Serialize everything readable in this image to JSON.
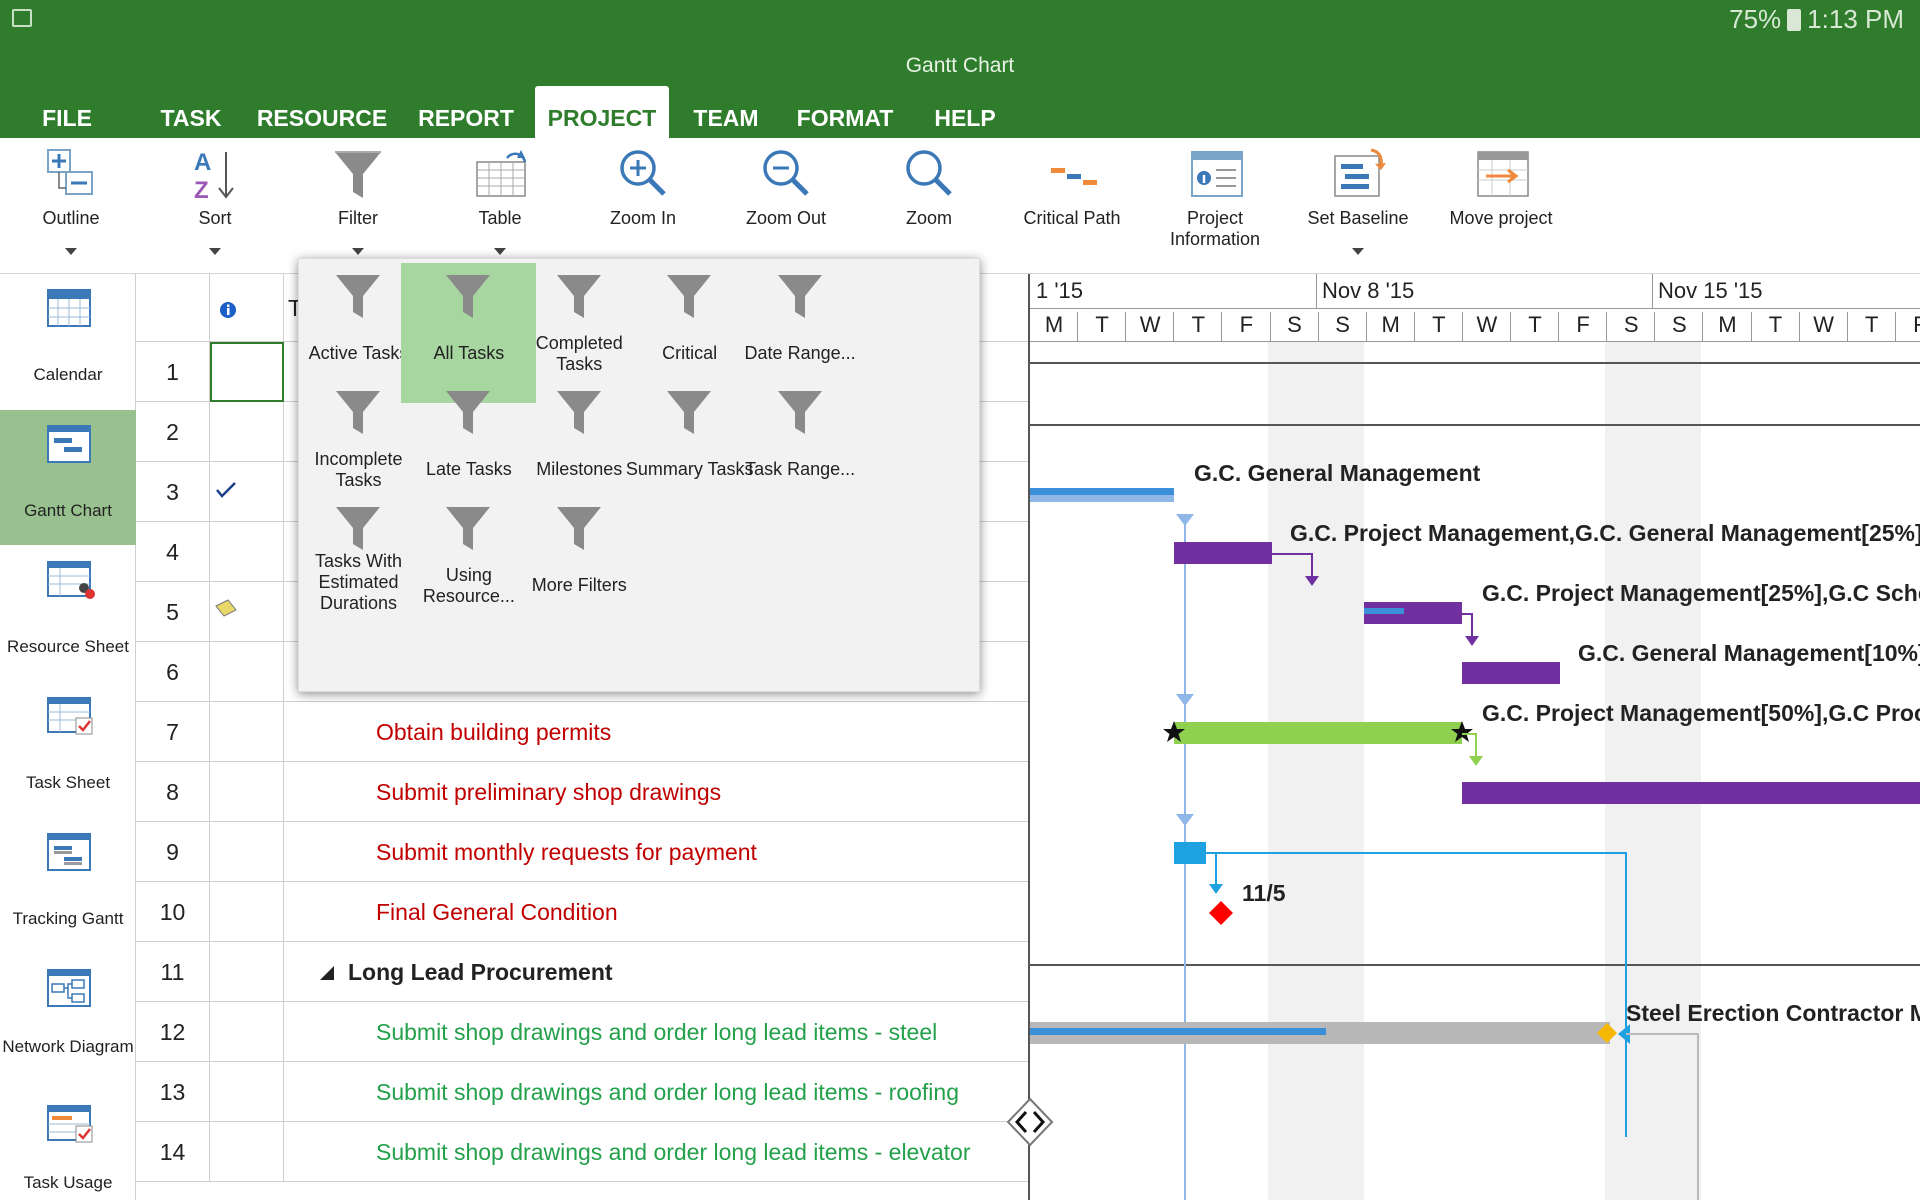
{
  "status_bar": {
    "battery": "75%",
    "time": "1:13 PM"
  },
  "app": {
    "title": "Gantt Chart"
  },
  "tabs": [
    "FILE",
    "TASK",
    "RESOURCE",
    "REPORT",
    "PROJECT",
    "TEAM",
    "FORMAT",
    "HELP"
  ],
  "active_tab": "PROJECT",
  "ribbon": {
    "outline": "Outline",
    "sort": "Sort",
    "filter": "Filter",
    "table": "Table",
    "zoom_in": "Zoom In",
    "zoom_out": "Zoom Out",
    "zoom": "Zoom",
    "critical_path": "Critical Path",
    "project_information": "Project Information",
    "set_baseline": "Set Baseline",
    "move_project": "Move project"
  },
  "views": {
    "calendar": "Calendar",
    "gantt_chart": "Gantt Chart",
    "resource_sheet": "Resource Sheet",
    "task_sheet": "Task Sheet",
    "tracking_gantt": "Tracking Gantt",
    "network_diagram": "Network Diagram",
    "task_usage": "Task Usage"
  },
  "active_view": "Gantt Chart",
  "grid": {
    "header_name": "T",
    "rows": [
      {
        "id": "1",
        "name": ""
      },
      {
        "id": "2",
        "name": ""
      },
      {
        "id": "3",
        "name": ""
      },
      {
        "id": "4",
        "name": ""
      },
      {
        "id": "5",
        "name": ""
      },
      {
        "id": "6",
        "name": ""
      },
      {
        "id": "7",
        "name": "Obtain building permits"
      },
      {
        "id": "8",
        "name": "Submit preliminary shop drawings"
      },
      {
        "id": "9",
        "name": "Submit monthly requests for payment"
      },
      {
        "id": "10",
        "name": "Final General Condition"
      },
      {
        "id": "11",
        "name": "Long Lead Procurement"
      },
      {
        "id": "12",
        "name": "Submit shop drawings and order long lead items - steel"
      },
      {
        "id": "13",
        "name": "Submit shop drawings and order long lead items - roofing"
      },
      {
        "id": "14",
        "name": "Submit shop drawings and order long lead items - elevator"
      }
    ],
    "colors": {
      "critical": "#c00000",
      "normal": "#22a04a",
      "summary": "#222222"
    }
  },
  "timescale": {
    "weeks": [
      "1 '15",
      "Nov 8 '15",
      "Nov 15 '15"
    ],
    "days": [
      "M",
      "T",
      "W",
      "T",
      "F",
      "S",
      "S",
      "M",
      "T",
      "W",
      "T",
      "F",
      "S",
      "S",
      "M",
      "T",
      "W",
      "T",
      "F"
    ]
  },
  "gantt_labels": {
    "r3": "G.C. General Management",
    "r4": "G.C. Project Management,G.C. General Management[25%]",
    "r5": "G.C. Project Management[25%],G.C Sche",
    "r6": "G.C. General Management[10%]",
    "r7": "G.C. Project Management[50%],G.C Proc",
    "r10": "11/5",
    "r12": "Steel Erection Contractor M"
  },
  "gantt_colors": {
    "task": "#7030a0",
    "critical": "#8fd14f",
    "progress": "#3a8fd8",
    "summary": "#b8b8b8",
    "milestone": "#ff0000",
    "link": "#1da1e0"
  },
  "filter_menu": {
    "items": [
      "Active Tasks",
      "All Tasks",
      "Completed Tasks",
      "Critical",
      "Date Range...",
      "Incomplete Tasks",
      "Late Tasks",
      "Milestones",
      "Summary Tasks",
      "Task Range...",
      "Tasks With Estimated Durations",
      "Using Resource...",
      "More Filters"
    ],
    "selected": "All Tasks"
  }
}
